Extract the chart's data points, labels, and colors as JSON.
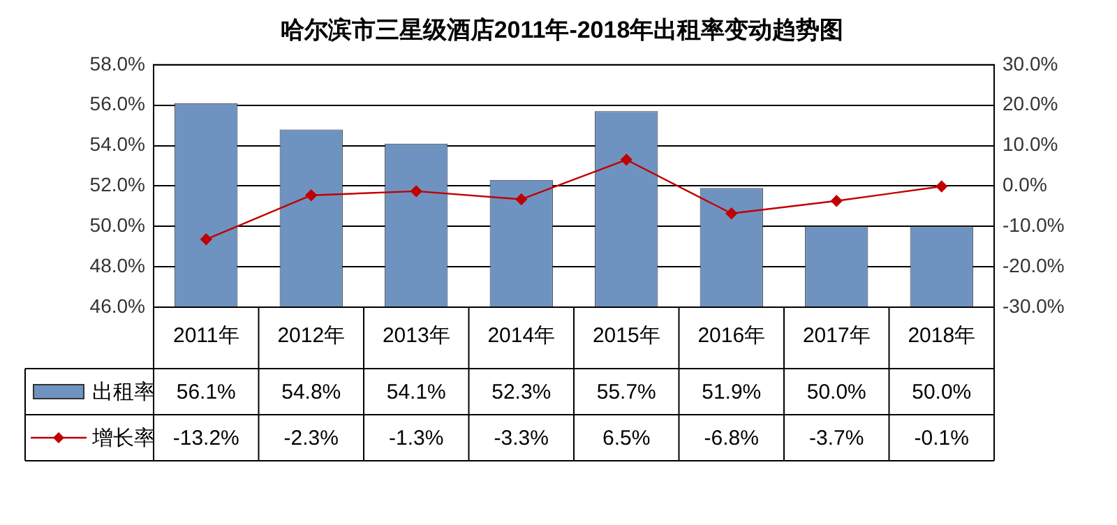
{
  "chart_data": {
    "type": "bar",
    "title": "哈尔滨市三星级酒店2011年-2018年出租率变动趋势图",
    "categories": [
      "2011年",
      "2012年",
      "2013年",
      "2014年",
      "2015年",
      "2016年",
      "2017年",
      "2018年"
    ],
    "series": [
      {
        "name": "出租率",
        "color": "#6f93c0",
        "values": [
          56.1,
          54.8,
          54.1,
          52.3,
          55.7,
          51.9,
          50.0,
          50.0
        ],
        "value_labels": [
          "56.1%",
          "54.8%",
          "54.1%",
          "52.3%",
          "55.7%",
          "51.9%",
          "50.0%",
          "50.0%"
        ]
      },
      {
        "name": "增长率",
        "type": "line",
        "axis": "y2",
        "color": "#c00000",
        "marker": "diamond",
        "values": [
          -13.2,
          -2.3,
          -1.3,
          -3.3,
          6.5,
          -6.8,
          -3.7,
          -0.1
        ],
        "value_labels": [
          "-13.2%",
          "-2.3%",
          "-1.3%",
          "-3.3%",
          "6.5%",
          "-6.8%",
          "-3.7%",
          "-0.1%"
        ]
      }
    ],
    "ylim": [
      46,
      58
    ],
    "yticks": [
      {
        "value": 46,
        "label": "46.0%"
      },
      {
        "value": 48,
        "label": "48.0%"
      },
      {
        "value": 50,
        "label": "50.0%"
      },
      {
        "value": 52,
        "label": "52.0%"
      },
      {
        "value": 54,
        "label": "54.0%"
      },
      {
        "value": 56,
        "label": "56.0%"
      },
      {
        "value": 58,
        "label": "58.0%"
      }
    ],
    "y2lim": [
      -30,
      30
    ],
    "y2ticks": [
      {
        "value": -30,
        "label": "-30.0%"
      },
      {
        "value": -20,
        "label": "-20.0%"
      },
      {
        "value": -10,
        "label": "-10.0%"
      },
      {
        "value": 0,
        "label": "0.0%"
      },
      {
        "value": 10,
        "label": "10.0%"
      },
      {
        "value": 20,
        "label": "20.0%"
      },
      {
        "value": 30,
        "label": "30.0%"
      }
    ],
    "grid": "y",
    "legend": "bottom"
  }
}
